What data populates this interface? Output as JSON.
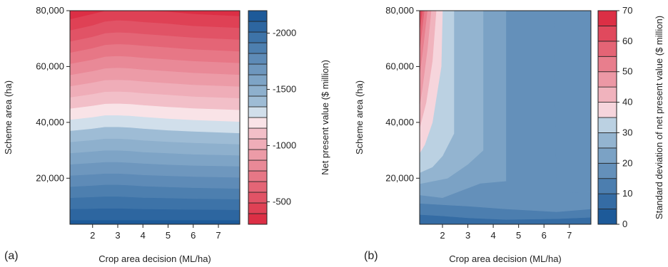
{
  "chart_data": [
    {
      "type": "heatmap",
      "panel_label": "(a)",
      "xlabel": "Crop area decision (ML/ha)",
      "ylabel": "Scheme area (ha)",
      "colorbar_label": "Net present value ($ million)",
      "x_ticks": [
        2,
        3,
        4,
        5,
        6,
        7
      ],
      "y_ticks": [
        20000,
        40000,
        60000,
        80000
      ],
      "y_tick_labels": [
        "20,000",
        "40,000",
        "60,000",
        "80,000"
      ],
      "xlim": [
        1.1,
        7.85
      ],
      "ylim": [
        3500,
        80000
      ],
      "colorbar_ticks": [
        -500,
        -1000,
        -1500,
        -2000
      ],
      "colorbar_tick_labels": [
        "-500",
        "-1000",
        "-1500",
        "-2000"
      ],
      "colorbar_range": [
        -300,
        -2200
      ],
      "colorbar_levels": 20,
      "contour_x": [
        1.1,
        2.0,
        2.5,
        3.0,
        3.5,
        4.0,
        5.0,
        6.0,
        7.85
      ],
      "contour_boundaries_scheme_area": [
        [
          5000,
          5000,
          5000,
          5000,
          5000,
          5000,
          5000,
          5000,
          5000
        ],
        [
          9000,
          9100,
          9200,
          9200,
          9100,
          9000,
          8900,
          8800,
          8700
        ],
        [
          13000,
          13300,
          13500,
          13500,
          13300,
          13100,
          12900,
          12700,
          12500
        ],
        [
          17000,
          17400,
          17700,
          17700,
          17500,
          17200,
          16900,
          16600,
          16300
        ],
        [
          21000,
          21400,
          21700,
          21700,
          21500,
          21200,
          20900,
          20600,
          20300
        ],
        [
          25000,
          25500,
          25800,
          25800,
          25600,
          25300,
          24900,
          24600,
          24300
        ],
        [
          29000,
          29600,
          30000,
          30000,
          29800,
          29400,
          29000,
          28600,
          28200
        ],
        [
          33000,
          33700,
          34200,
          34200,
          34000,
          33600,
          33100,
          32700,
          32200
        ],
        [
          37000,
          37800,
          38400,
          38400,
          38200,
          37800,
          37200,
          36800,
          36200
        ],
        [
          41000,
          41900,
          42600,
          42600,
          42400,
          42000,
          41400,
          40900,
          40300
        ],
        [
          45000,
          46000,
          46700,
          46800,
          46600,
          46200,
          45600,
          45100,
          44500
        ],
        [
          49000,
          50200,
          51000,
          51100,
          50900,
          50500,
          49900,
          49300,
          48700
        ],
        [
          53000,
          54300,
          55200,
          55300,
          55100,
          54700,
          54100,
          53500,
          52900
        ],
        [
          57000,
          58400,
          59400,
          59600,
          59400,
          59000,
          58400,
          57800,
          57100
        ],
        [
          61000,
          62500,
          63600,
          63800,
          63600,
          63200,
          62600,
          62000,
          61300
        ],
        [
          65000,
          66600,
          67800,
          68100,
          67900,
          67500,
          66900,
          66200,
          65500
        ],
        [
          69000,
          70700,
          72000,
          72300,
          72100,
          71700,
          71100,
          70400,
          69700
        ],
        [
          73000,
          74800,
          76200,
          76600,
          76400,
          76000,
          75400,
          74600,
          73900
        ],
        [
          77000,
          78900,
          80000,
          80000,
          80000,
          80000,
          79700,
          78900,
          78100
        ]
      ]
    },
    {
      "type": "heatmap",
      "panel_label": "(b)",
      "xlabel": "Crop area decision (ML/ha)",
      "ylabel": "Scheme area (ha)",
      "colorbar_label": "Standard deviation of net present value ($ million)",
      "x_ticks": [
        2,
        3,
        4,
        5,
        6,
        7
      ],
      "y_ticks": [
        20000,
        40000,
        60000,
        80000
      ],
      "y_tick_labels": [
        "20,000",
        "40,000",
        "60,000",
        "80,000"
      ],
      "xlim": [
        1.1,
        7.85
      ],
      "ylim": [
        3500,
        80000
      ],
      "colorbar_ticks": [
        0,
        10,
        20,
        30,
        40,
        50,
        60,
        70
      ],
      "colorbar_tick_labels": [
        "0",
        "10",
        "20",
        "30",
        "40",
        "50",
        "60",
        "70"
      ],
      "colorbar_range": [
        0,
        70
      ],
      "colorbar_levels": 14,
      "regions": [
        {
          "level": 1,
          "polygon": [
            [
              1.1,
              3500
            ],
            [
              7.85,
              3500
            ],
            [
              7.85,
              6000
            ],
            [
              6.5,
              5500
            ],
            [
              4.5,
              5200
            ],
            [
              3.0,
              5800
            ],
            [
              2.0,
              6500
            ],
            [
              1.1,
              7000
            ]
          ]
        },
        {
          "level": 2,
          "polygon": [
            [
              1.1,
              7000
            ],
            [
              2.0,
              6500
            ],
            [
              3.0,
              5800
            ],
            [
              4.5,
              5200
            ],
            [
              6.5,
              5500
            ],
            [
              7.85,
              6000
            ],
            [
              7.85,
              9000
            ],
            [
              6.5,
              8000
            ],
            [
              4.5,
              9000
            ],
            [
              3.0,
              10000
            ],
            [
              2.0,
              10500
            ],
            [
              1.1,
              11000
            ]
          ]
        },
        {
          "level": 3,
          "polygon": [
            [
              1.1,
              11000
            ],
            [
              2.0,
              10500
            ],
            [
              3.0,
              10000
            ],
            [
              4.5,
              9000
            ],
            [
              6.5,
              8000
            ],
            [
              7.85,
              9000
            ],
            [
              7.85,
              15000
            ],
            [
              6.5,
              14800
            ],
            [
              6.4,
              80000
            ],
            [
              4.5,
              80000
            ],
            [
              4.5,
              19000
            ],
            [
              3.5,
              18200
            ],
            [
              2.0,
              13000
            ],
            [
              1.1,
              14000
            ]
          ]
        },
        {
          "level": 3,
          "polygon": [
            [
              6.4,
              80000
            ],
            [
              6.5,
              14800
            ],
            [
              7.85,
              15000
            ],
            [
              7.85,
              80000
            ]
          ]
        },
        {
          "level": 4,
          "polygon": [
            [
              1.1,
              14000
            ],
            [
              2.0,
              13000
            ],
            [
              3.5,
              18200
            ],
            [
              4.5,
              19000
            ],
            [
              4.5,
              80000
            ],
            [
              3.6,
              80000
            ],
            [
              3.6,
              30000
            ],
            [
              3.0,
              25000
            ],
            [
              2.2,
              20000
            ],
            [
              1.1,
              18000
            ]
          ]
        },
        {
          "level": 5,
          "polygon": [
            [
              1.1,
              18000
            ],
            [
              2.2,
              20000
            ],
            [
              3.0,
              25000
            ],
            [
              3.6,
              30000
            ],
            [
              3.6,
              80000
            ],
            [
              2.45,
              80000
            ],
            [
              2.45,
              36000
            ],
            [
              2.0,
              28000
            ],
            [
              1.6,
              24000
            ],
            [
              1.1,
              22000
            ]
          ]
        },
        {
          "level": 6,
          "polygon": [
            [
              1.1,
              22000
            ],
            [
              1.6,
              24000
            ],
            [
              2.0,
              28000
            ],
            [
              2.45,
              36000
            ],
            [
              2.45,
              80000
            ],
            [
              2.0,
              80000
            ],
            [
              1.95,
              60000
            ],
            [
              1.6,
              40000
            ],
            [
              1.3,
              32000
            ],
            [
              1.1,
              29000
            ]
          ]
        },
        {
          "level": 7,
          "polygon": [
            [
              1.1,
              29000
            ],
            [
              1.3,
              32000
            ],
            [
              1.6,
              40000
            ],
            [
              1.95,
              60000
            ],
            [
              2.0,
              80000
            ],
            [
              1.75,
              80000
            ],
            [
              1.6,
              62000
            ],
            [
              1.35,
              47000
            ],
            [
              1.1,
              38000
            ]
          ]
        },
        {
          "level": 8,
          "polygon": [
            [
              1.1,
              38000
            ],
            [
              1.35,
              47000
            ],
            [
              1.6,
              62000
            ],
            [
              1.75,
              80000
            ],
            [
              1.55,
              80000
            ],
            [
              1.4,
              66000
            ],
            [
              1.2,
              52000
            ],
            [
              1.1,
              46000
            ]
          ]
        },
        {
          "level": 9,
          "polygon": [
            [
              1.1,
              46000
            ],
            [
              1.2,
              52000
            ],
            [
              1.4,
              66000
            ],
            [
              1.55,
              80000
            ],
            [
              1.4,
              80000
            ],
            [
              1.25,
              68000
            ],
            [
              1.1,
              57000
            ]
          ]
        },
        {
          "level": 10,
          "polygon": [
            [
              1.1,
              57000
            ],
            [
              1.25,
              68000
            ],
            [
              1.4,
              80000
            ],
            [
              1.28,
              80000
            ],
            [
              1.15,
              70000
            ],
            [
              1.1,
              66000
            ]
          ]
        },
        {
          "level": 11,
          "polygon": [
            [
              1.1,
              66000
            ],
            [
              1.15,
              70000
            ],
            [
              1.28,
              80000
            ],
            [
              1.2,
              80000
            ],
            [
              1.1,
              73000
            ]
          ]
        },
        {
          "level": 12,
          "polygon": [
            [
              1.1,
              73000
            ],
            [
              1.2,
              80000
            ],
            [
              1.1,
              80000
            ]
          ]
        }
      ]
    }
  ]
}
